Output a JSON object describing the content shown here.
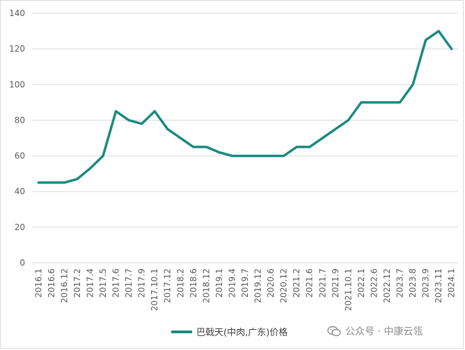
{
  "chart_data": {
    "type": "line",
    "title": "",
    "xlabel": "",
    "ylabel": "",
    "ylim": [
      0,
      140
    ],
    "yticks": [
      0,
      20,
      40,
      60,
      80,
      100,
      120,
      140
    ],
    "grid": true,
    "legend_position": "bottom",
    "categories": [
      "2016.1",
      "2016.6",
      "2016.12",
      "2017.2",
      "2017.4",
      "2017.5",
      "2017.6",
      "2017.7",
      "2017.9",
      "2017.10.1",
      "2017.12",
      "2018.2",
      "2018.6",
      "2018.12",
      "2019.1",
      "2019.4",
      "2019.7",
      "2019.12",
      "2020.6",
      "2020.12",
      "2021.2",
      "2021.6",
      "2021.7",
      "2021.9",
      "2021.10.1",
      "2022.1",
      "2022.6",
      "2022.12",
      "2023.7",
      "2023.8",
      "2023.9",
      "2023.11",
      "2024.1"
    ],
    "series": [
      {
        "name": "巴戟天(中肉,广东)价格",
        "color": "#1a8a80",
        "values": [
          45,
          45,
          45,
          47,
          53,
          60,
          85,
          80,
          78,
          85,
          75,
          70,
          65,
          65,
          62,
          60,
          60,
          60,
          60,
          60,
          65,
          65,
          70,
          75,
          80,
          90,
          90,
          90,
          90,
          100,
          125,
          130,
          120
        ]
      }
    ]
  },
  "watermark": {
    "text": "公众号 · 中康云瓴",
    "icon": "wechat-icon"
  }
}
